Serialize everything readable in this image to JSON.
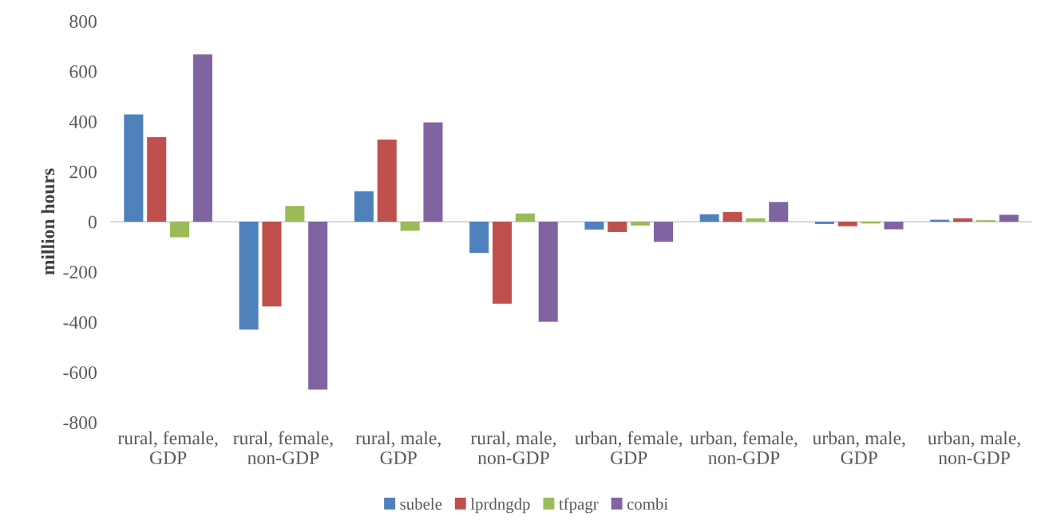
{
  "chart_data": {
    "type": "bar",
    "ylabel": "million hours",
    "categories": [
      "rural, female,\nGDP",
      "rural, female,\nnon-GDP",
      "rural, male,\nGDP",
      "rural, male,\nnon-GDP",
      "urban, female,\nGDP",
      "urban, female,\nnon-GDP",
      "urban, male,\nGDP",
      "urban, male,\nnon-GDP"
    ],
    "series": [
      {
        "name": "subele",
        "color": "#4f81bd",
        "values": [
          428,
          -430,
          122,
          -124,
          -31,
          30,
          -9,
          8
        ]
      },
      {
        "name": "lprdngdp",
        "color": "#c0504d",
        "values": [
          337,
          -338,
          328,
          -327,
          -41,
          39,
          -18,
          14
        ]
      },
      {
        "name": "tfpagr",
        "color": "#9bbb59",
        "values": [
          -62,
          63,
          -36,
          33,
          -15,
          14,
          -7,
          6
        ]
      },
      {
        "name": "combi",
        "color": "#8064a2",
        "values": [
          667,
          -669,
          396,
          -399,
          -80,
          79,
          -30,
          28
        ]
      }
    ],
    "ylim": [
      -800,
      800
    ],
    "yticks": [
      -800,
      -600,
      -400,
      -200,
      0,
      200,
      400,
      600,
      800
    ],
    "ref_lines": [
      {
        "axis": "y",
        "value": 0,
        "color": "#d9d9d9"
      }
    ],
    "grid": false,
    "legend": "bottom"
  }
}
